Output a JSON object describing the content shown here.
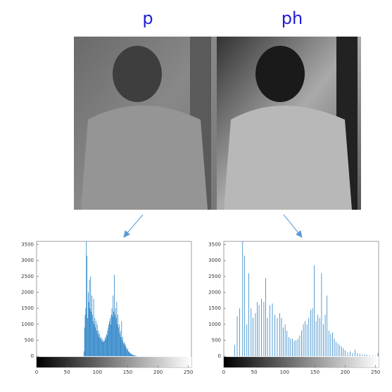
{
  "chart_data": [
    {
      "type": "bar",
      "title": "p",
      "color": "#2f86c8",
      "x": [
        78,
        79,
        80,
        81,
        82,
        83,
        84,
        85,
        86,
        87,
        88,
        89,
        90,
        91,
        92,
        93,
        94,
        95,
        96,
        97,
        98,
        99,
        100,
        101,
        102,
        103,
        104,
        105,
        106,
        107,
        108,
        109,
        110,
        111,
        112,
        113,
        114,
        115,
        116,
        117,
        118,
        119,
        120,
        121,
        122,
        123,
        124,
        125,
        126,
        127,
        128,
        129,
        130,
        131,
        132,
        133,
        134,
        135,
        136,
        137,
        138,
        139,
        140,
        141,
        142,
        143,
        144,
        145,
        146,
        147,
        148,
        149,
        150,
        151,
        152,
        153,
        154,
        155,
        156,
        157,
        158,
        159,
        160,
        161,
        162,
        163,
        164,
        165
      ],
      "values": [
        150,
        900,
        1300,
        1500,
        3600,
        3150,
        1200,
        2000,
        1700,
        2400,
        1500,
        2500,
        1400,
        1900,
        1300,
        1100,
        1800,
        1000,
        1200,
        900,
        1100,
        800,
        1000,
        700,
        800,
        600,
        700,
        550,
        600,
        500,
        550,
        450,
        500,
        450,
        500,
        600,
        550,
        700,
        650,
        800,
        900,
        1000,
        1100,
        1200,
        1000,
        1300,
        1500,
        1250,
        1900,
        1400,
        2550,
        1300,
        1500,
        1200,
        1700,
        1000,
        1300,
        900,
        1000,
        700,
        800,
        600,
        1100,
        500,
        600,
        400,
        450,
        350,
        400,
        300,
        250,
        200,
        250,
        150,
        150,
        120,
        100,
        80,
        70,
        60,
        50,
        40,
        30,
        25,
        20,
        15,
        10,
        5
      ],
      "xlim": [
        0,
        255
      ],
      "xticks": [
        0,
        50,
        100,
        150,
        200,
        250
      ],
      "ylim": [
        -350,
        3600
      ],
      "yticks": [
        0,
        500,
        1000,
        1500,
        2000,
        2500,
        3000,
        3500
      ]
    },
    {
      "type": "bar",
      "title": "ph",
      "color": "#2f86c8",
      "x": [
        18,
        22,
        26,
        31,
        34,
        38,
        41,
        45,
        48,
        52,
        55,
        58,
        62,
        66,
        69,
        72,
        76,
        80,
        84,
        88,
        92,
        95,
        98,
        101,
        104,
        107,
        110,
        113,
        116,
        119,
        122,
        125,
        128,
        131,
        134,
        137,
        140,
        143,
        146,
        149,
        152,
        155,
        158,
        161,
        164,
        167,
        170,
        173,
        176,
        179,
        182,
        185,
        188,
        191,
        194,
        197,
        200,
        204,
        208,
        212,
        216,
        220,
        224,
        228,
        232,
        236,
        240,
        245,
        250,
        254
      ],
      "values": [
        350,
        1250,
        1500,
        3600,
        3150,
        1000,
        2600,
        1500,
        1200,
        1350,
        1700,
        1600,
        1800,
        1700,
        2450,
        1200,
        1600,
        1650,
        1300,
        1200,
        1350,
        1200,
        900,
        1000,
        800,
        600,
        550,
        550,
        480,
        500,
        550,
        650,
        800,
        1000,
        1100,
        1000,
        1200,
        1450,
        1500,
        2850,
        1100,
        1300,
        1200,
        2600,
        1000,
        1300,
        1900,
        800,
        700,
        750,
        550,
        450,
        400,
        350,
        300,
        250,
        180,
        120,
        150,
        100,
        200,
        100,
        80,
        50,
        60,
        40,
        30,
        20,
        10,
        100
      ],
      "xlim": [
        0,
        255
      ],
      "xticks": [
        0,
        50,
        100,
        150,
        200,
        250
      ],
      "ylim": [
        -350,
        3600
      ],
      "yticks": [
        0,
        500,
        1000,
        1500,
        2000,
        2500,
        3000,
        3500
      ]
    }
  ]
}
